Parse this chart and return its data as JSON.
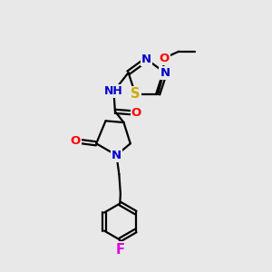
{
  "bg_color": "#e8e8e8",
  "bond_color": "#000000",
  "atom_colors": {
    "N": "#0000cc",
    "O": "#ff0000",
    "S": "#ccaa00",
    "F": "#dd00dd",
    "C": "#000000",
    "H": "#777777"
  },
  "bond_width": 1.6,
  "font_size": 9.5,
  "figsize": [
    3.0,
    3.0
  ],
  "dpi": 100,
  "xlim": [
    0,
    10
  ],
  "ylim": [
    0,
    10
  ]
}
